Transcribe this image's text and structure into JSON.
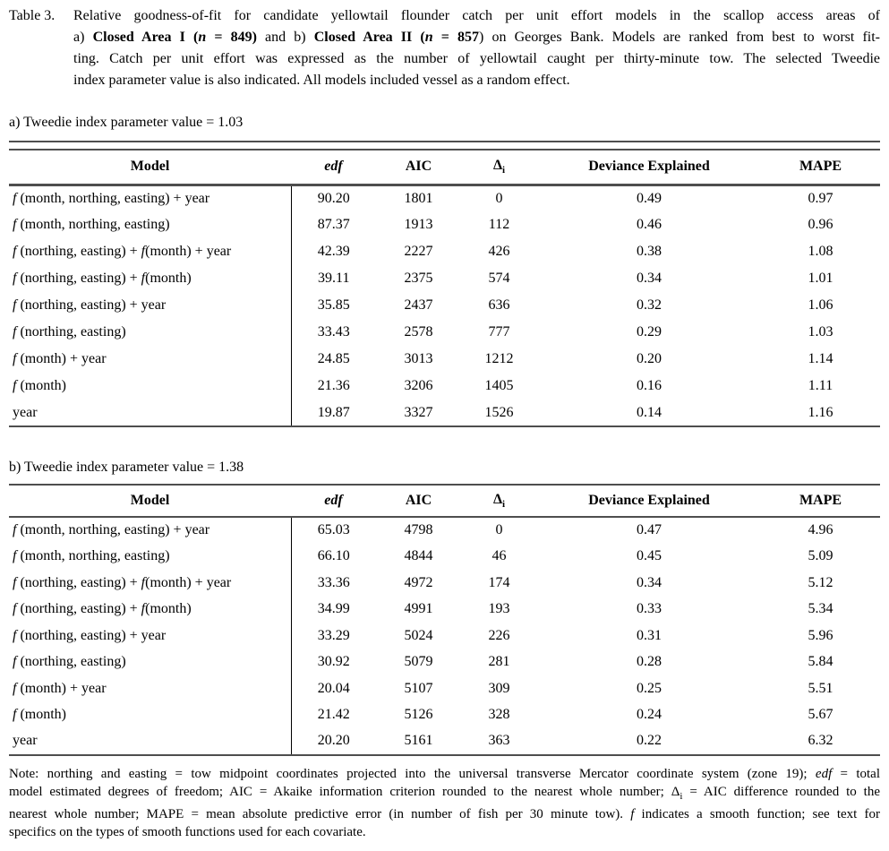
{
  "colors": {
    "background": "#ffffff",
    "text": "#000000",
    "rules": "#4e4e4e"
  },
  "caption": {
    "label": "Table 3.",
    "lines": [
      {
        "j": true,
        "segments": [
          {
            "t": "Relative goodness-of-fit for candidate yellowtail flounder catch per unit effort models in the scallop access areas of",
            "s": "r"
          }
        ]
      },
      {
        "j": true,
        "segments": [
          {
            "t": "a) ",
            "s": "r"
          },
          {
            "t": "Closed Area I (",
            "s": "b"
          },
          {
            "t": "n",
            "s": "bi"
          },
          {
            "t": " = 849)",
            "s": "b"
          },
          {
            "t": " and b) ",
            "s": "r"
          },
          {
            "t": "Closed Area II (",
            "s": "b"
          },
          {
            "t": "n",
            "s": "bi"
          },
          {
            "t": " = 857",
            "s": "b"
          },
          {
            "t": ") on Georges Bank. Models are ranked from best to worst fit-",
            "s": "r"
          }
        ]
      },
      {
        "j": true,
        "segments": [
          {
            "t": "ting. Catch per unit effort was expressed as the number of yellowtail caught per thirty-minute tow. The selected Tweedie",
            "s": "r"
          }
        ]
      },
      {
        "j": false,
        "segments": [
          {
            "t": "index parameter value is also indicated. All models included vessel as a random effect.",
            "s": "r"
          }
        ]
      }
    ]
  },
  "section_a": {
    "title": "a) Tweedie index parameter value = 1.03"
  },
  "section_b": {
    "title": "b) Tweedie index parameter value = 1.38"
  },
  "table_a": {
    "headers": [
      [
        {
          "t": "Model",
          "s": "b"
        }
      ],
      [
        {
          "t": "edf",
          "s": "bi"
        }
      ],
      [
        {
          "t": "AIC",
          "s": "b"
        }
      ],
      [
        {
          "t": "Δ",
          "s": "b"
        },
        {
          "t": "i",
          "s": "bsub"
        }
      ],
      [
        {
          "t": "Deviance Explained",
          "s": "b"
        }
      ],
      [
        {
          "t": "MAPE",
          "s": "b"
        }
      ]
    ],
    "rows": [
      {
        "model": [
          {
            "t": "f",
            "s": "i"
          },
          {
            "t": " (month, northing, easting) + year",
            "s": "r"
          }
        ],
        "values": [
          "90.20",
          "1801",
          "0",
          "0.49",
          "0.97"
        ]
      },
      {
        "model": [
          {
            "t": "f",
            "s": "i"
          },
          {
            "t": " (month, northing, easting)",
            "s": "r"
          }
        ],
        "values": [
          "87.37",
          "1913",
          "112",
          "0.46",
          "0.96"
        ]
      },
      {
        "model": [
          {
            "t": "f",
            "s": "i"
          },
          {
            "t": " (northing, easting) + ",
            "s": "r"
          },
          {
            "t": "f",
            "s": "i"
          },
          {
            "t": "(month) + year",
            "s": "r"
          }
        ],
        "values": [
          "42.39",
          "2227",
          "426",
          "0.38",
          "1.08"
        ]
      },
      {
        "model": [
          {
            "t": "f",
            "s": "i"
          },
          {
            "t": " (northing, easting) + ",
            "s": "r"
          },
          {
            "t": "f",
            "s": "i"
          },
          {
            "t": "(month)",
            "s": "r"
          }
        ],
        "values": [
          "39.11",
          "2375",
          "574",
          "0.34",
          "1.01"
        ]
      },
      {
        "model": [
          {
            "t": "f",
            "s": "i"
          },
          {
            "t": " (northing, easting) + year",
            "s": "r"
          }
        ],
        "values": [
          "35.85",
          "2437",
          "636",
          "0.32",
          "1.06"
        ]
      },
      {
        "model": [
          {
            "t": "f",
            "s": "i"
          },
          {
            "t": " (northing, easting)",
            "s": "r"
          }
        ],
        "values": [
          "33.43",
          "2578",
          "777",
          "0.29",
          "1.03"
        ]
      },
      {
        "model": [
          {
            "t": "f",
            "s": "i"
          },
          {
            "t": " (month) + year",
            "s": "r"
          }
        ],
        "values": [
          "24.85",
          "3013",
          "1212",
          "0.20",
          "1.14"
        ]
      },
      {
        "model": [
          {
            "t": "f",
            "s": "i"
          },
          {
            "t": " (month)",
            "s": "r"
          }
        ],
        "values": [
          "21.36",
          "3206",
          "1405",
          "0.16",
          "1.11"
        ]
      },
      {
        "model": [
          {
            "t": "year",
            "s": "r"
          }
        ],
        "values": [
          "19.87",
          "3327",
          "1526",
          "0.14",
          "1.16"
        ]
      }
    ]
  },
  "table_b": {
    "headers": [
      [
        {
          "t": "Model",
          "s": "b"
        }
      ],
      [
        {
          "t": "edf",
          "s": "bi"
        }
      ],
      [
        {
          "t": "AIC",
          "s": "b"
        }
      ],
      [
        {
          "t": "Δ",
          "s": "b"
        },
        {
          "t": "i",
          "s": "bsub"
        }
      ],
      [
        {
          "t": "Deviance Explained",
          "s": "b"
        }
      ],
      [
        {
          "t": "MAPE",
          "s": "b"
        }
      ]
    ],
    "rows": [
      {
        "model": [
          {
            "t": "f",
            "s": "i"
          },
          {
            "t": " (month, northing, easting) + year",
            "s": "r"
          }
        ],
        "values": [
          "65.03",
          "4798",
          "0",
          "0.47",
          "4.96"
        ]
      },
      {
        "model": [
          {
            "t": "f",
            "s": "i"
          },
          {
            "t": " (month, northing, easting)",
            "s": "r"
          }
        ],
        "values": [
          "66.10",
          "4844",
          "46",
          "0.45",
          "5.09"
        ]
      },
      {
        "model": [
          {
            "t": "f",
            "s": "i"
          },
          {
            "t": " (northing, easting) + ",
            "s": "r"
          },
          {
            "t": "f",
            "s": "i"
          },
          {
            "t": "(month) + year",
            "s": "r"
          }
        ],
        "values": [
          "33.36",
          "4972",
          "174",
          "0.34",
          "5.12"
        ]
      },
      {
        "model": [
          {
            "t": "f",
            "s": "i"
          },
          {
            "t": " (northing, easting) + ",
            "s": "r"
          },
          {
            "t": "f",
            "s": "i"
          },
          {
            "t": "(month)",
            "s": "r"
          }
        ],
        "values": [
          "34.99",
          "4991",
          "193",
          "0.33",
          "5.34"
        ]
      },
      {
        "model": [
          {
            "t": "f",
            "s": "i"
          },
          {
            "t": " (northing, easting) + year",
            "s": "r"
          }
        ],
        "values": [
          "33.29",
          "5024",
          "226",
          "0.31",
          "5.96"
        ]
      },
      {
        "model": [
          {
            "t": "f",
            "s": "i"
          },
          {
            "t": " (northing, easting)",
            "s": "r"
          }
        ],
        "values": [
          "30.92",
          "5079",
          "281",
          "0.28",
          "5.84"
        ]
      },
      {
        "model": [
          {
            "t": "f",
            "s": "i"
          },
          {
            "t": " (month) + year",
            "s": "r"
          }
        ],
        "values": [
          "20.04",
          "5107",
          "309",
          "0.25",
          "5.51"
        ]
      },
      {
        "model": [
          {
            "t": "f",
            "s": "i"
          },
          {
            "t": " (month)",
            "s": "r"
          }
        ],
        "values": [
          "21.42",
          "5126",
          "328",
          "0.24",
          "5.67"
        ]
      },
      {
        "model": [
          {
            "t": "year",
            "s": "r"
          }
        ],
        "values": [
          "20.20",
          "5161",
          "363",
          "0.22",
          "6.32"
        ]
      }
    ]
  },
  "note": {
    "lines": [
      {
        "j": true,
        "segments": [
          {
            "t": "Note: northing and easting = tow midpoint coordinates projected into the universal transverse Mercator coordinate system (zone 19); ",
            "s": "r"
          },
          {
            "t": "edf",
            "s": "i"
          },
          {
            "t": " = total",
            "s": "r"
          }
        ]
      },
      {
        "j": true,
        "segments": [
          {
            "t": "model estimated degrees of freedom; AIC = Akaike information criterion rounded to the nearest whole number; ",
            "s": "r"
          },
          {
            "t": "Δ",
            "s": "r"
          },
          {
            "t": "i",
            "s": "sub"
          },
          {
            "t": " = AIC difference rounded to the",
            "s": "r"
          }
        ]
      },
      {
        "j": true,
        "segments": [
          {
            "t": "nearest whole number; MAPE = mean absolute predictive error (in number of fish per 30 minute tow). ",
            "s": "r"
          },
          {
            "t": "f",
            "s": "i"
          },
          {
            "t": " indicates a smooth function; see text for",
            "s": "r"
          }
        ]
      },
      {
        "j": false,
        "segments": [
          {
            "t": "specifics on the types of smooth functions used for each covariate.",
            "s": "r"
          }
        ]
      }
    ]
  }
}
